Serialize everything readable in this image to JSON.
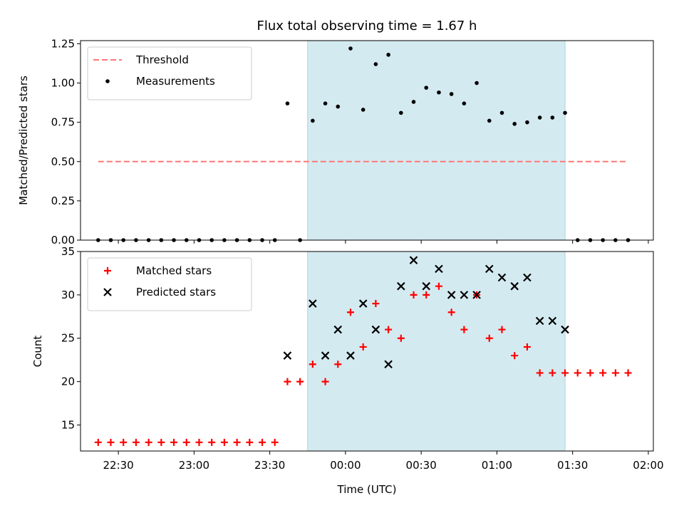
{
  "chart_data": [
    {
      "type": "scatter",
      "title": "Flux total observing time = 1.67 h",
      "xlabel": "",
      "ylabel": "Matched/Predicted stars",
      "xlim": [
        "22:15",
        "02:02"
      ],
      "ylim": [
        0,
        1.27
      ],
      "yticks": [
        0,
        0.25,
        0.5,
        0.75,
        1.0,
        1.25
      ],
      "ytick_labels": [
        "0.00",
        "0.25",
        "0.50",
        "0.75",
        "1.00",
        "1.25"
      ],
      "shaded_span": [
        "23:45",
        "01:27"
      ],
      "shaded_color": "#d4eaf1",
      "legend_position": "top-left",
      "threshold": {
        "name": "Threshold",
        "value": 0.5,
        "x_range": [
          "22:22",
          "01:52"
        ],
        "color": "#ff7777",
        "style": "dashed"
      },
      "series": [
        {
          "name": "Measurements",
          "marker": "dot",
          "color": "#000000",
          "points": [
            [
              "22:22",
              0
            ],
            [
              "22:27",
              0
            ],
            [
              "22:32",
              0
            ],
            [
              "22:37",
              0
            ],
            [
              "22:42",
              0
            ],
            [
              "22:47",
              0
            ],
            [
              "22:52",
              0
            ],
            [
              "22:57",
              0
            ],
            [
              "23:02",
              0
            ],
            [
              "23:07",
              0
            ],
            [
              "23:12",
              0
            ],
            [
              "23:17",
              0
            ],
            [
              "23:22",
              0
            ],
            [
              "23:27",
              0
            ],
            [
              "23:32",
              0
            ],
            [
              "23:37",
              0.87
            ],
            [
              "23:42",
              0
            ],
            [
              "23:47",
              0.76
            ],
            [
              "23:52",
              0.87
            ],
            [
              "23:57",
              0.85
            ],
            [
              "00:02",
              1.22
            ],
            [
              "00:07",
              0.83
            ],
            [
              "00:12",
              1.12
            ],
            [
              "00:17",
              1.18
            ],
            [
              "00:22",
              0.81
            ],
            [
              "00:27",
              0.88
            ],
            [
              "00:32",
              0.97
            ],
            [
              "00:37",
              0.94
            ],
            [
              "00:42",
              0.93
            ],
            [
              "00:47",
              0.87
            ],
            [
              "00:52",
              1.0
            ],
            [
              "00:57",
              0.76
            ],
            [
              "01:02",
              0.81
            ],
            [
              "01:07",
              0.74
            ],
            [
              "01:12",
              0.75
            ],
            [
              "01:17",
              0.78
            ],
            [
              "01:22",
              0.78
            ],
            [
              "01:27",
              0.81
            ],
            [
              "01:32",
              0
            ],
            [
              "01:37",
              0
            ],
            [
              "01:42",
              0
            ],
            [
              "01:47",
              0
            ],
            [
              "01:52",
              0
            ]
          ]
        }
      ]
    },
    {
      "type": "scatter",
      "title": "",
      "xlabel": "Time (UTC)",
      "ylabel": "Count",
      "xlim": [
        "22:15",
        "02:02"
      ],
      "ylim": [
        12,
        35
      ],
      "yticks": [
        15,
        20,
        25,
        30,
        35
      ],
      "ytick_labels": [
        "15",
        "20",
        "25",
        "30",
        "35"
      ],
      "xticks": [
        "22:30",
        "23:00",
        "23:30",
        "00:00",
        "00:30",
        "01:00",
        "01:30",
        "02:00"
      ],
      "shaded_span": [
        "23:45",
        "01:27"
      ],
      "shaded_color": "#d4eaf1",
      "legend_position": "top-left",
      "series": [
        {
          "name": "Matched stars",
          "marker": "plus",
          "color": "#ff0000",
          "points": [
            [
              "22:22",
              13
            ],
            [
              "22:27",
              13
            ],
            [
              "22:32",
              13
            ],
            [
              "22:37",
              13
            ],
            [
              "22:42",
              13
            ],
            [
              "22:47",
              13
            ],
            [
              "22:52",
              13
            ],
            [
              "22:57",
              13
            ],
            [
              "23:02",
              13
            ],
            [
              "23:07",
              13
            ],
            [
              "23:12",
              13
            ],
            [
              "23:17",
              13
            ],
            [
              "23:22",
              13
            ],
            [
              "23:27",
              13
            ],
            [
              "23:32",
              13
            ],
            [
              "23:37",
              20
            ],
            [
              "23:42",
              20
            ],
            [
              "23:47",
              22
            ],
            [
              "23:52",
              20
            ],
            [
              "23:57",
              22
            ],
            [
              "00:02",
              28
            ],
            [
              "00:07",
              24
            ],
            [
              "00:12",
              29
            ],
            [
              "00:17",
              26
            ],
            [
              "00:22",
              25
            ],
            [
              "00:27",
              30
            ],
            [
              "00:32",
              30
            ],
            [
              "00:37",
              31
            ],
            [
              "00:42",
              28
            ],
            [
              "00:47",
              26
            ],
            [
              "00:52",
              30
            ],
            [
              "00:57",
              25
            ],
            [
              "01:02",
              26
            ],
            [
              "01:07",
              23
            ],
            [
              "01:12",
              24
            ],
            [
              "01:17",
              21
            ],
            [
              "01:22",
              21
            ],
            [
              "01:27",
              21
            ],
            [
              "01:32",
              21
            ],
            [
              "01:37",
              21
            ],
            [
              "01:42",
              21
            ],
            [
              "01:47",
              21
            ],
            [
              "01:52",
              21
            ]
          ]
        },
        {
          "name": "Predicted stars",
          "marker": "x",
          "color": "#000000",
          "points": [
            [
              "23:37",
              23
            ],
            [
              "23:47",
              29
            ],
            [
              "23:52",
              23
            ],
            [
              "23:57",
              26
            ],
            [
              "00:02",
              23
            ],
            [
              "00:07",
              29
            ],
            [
              "00:12",
              26
            ],
            [
              "00:17",
              22
            ],
            [
              "00:22",
              31
            ],
            [
              "00:27",
              34
            ],
            [
              "00:32",
              31
            ],
            [
              "00:37",
              33
            ],
            [
              "00:42",
              30
            ],
            [
              "00:47",
              30
            ],
            [
              "00:52",
              30
            ],
            [
              "00:57",
              33
            ],
            [
              "01:02",
              32
            ],
            [
              "01:07",
              31
            ],
            [
              "01:12",
              32
            ],
            [
              "01:17",
              27
            ],
            [
              "01:22",
              27
            ],
            [
              "01:27",
              26
            ]
          ]
        }
      ]
    }
  ]
}
